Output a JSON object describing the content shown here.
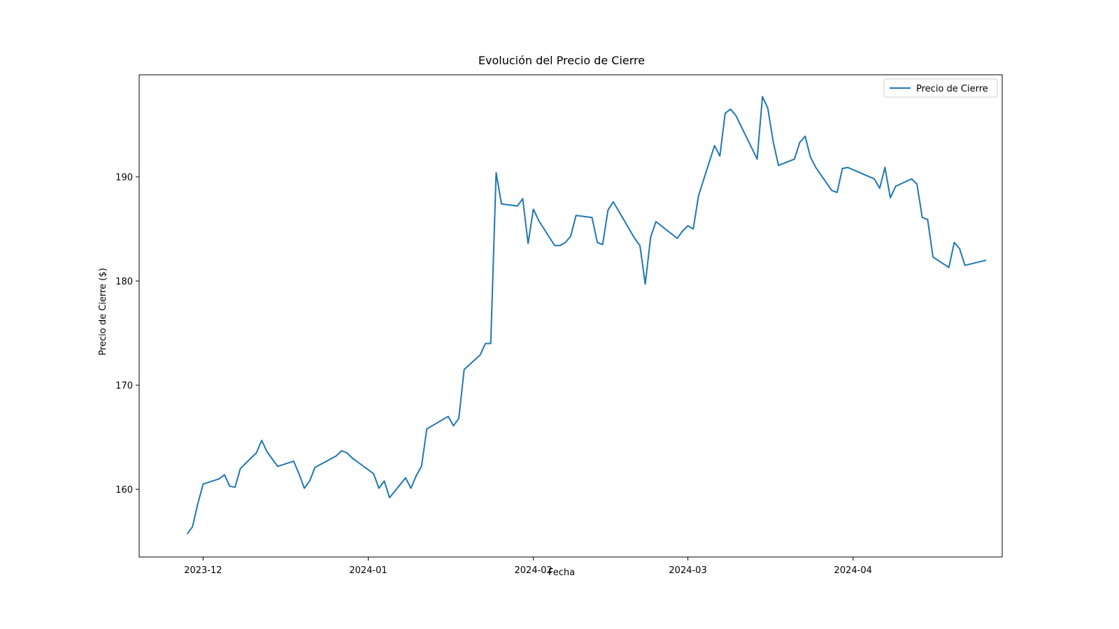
{
  "chart_data": {
    "type": "line",
    "title": "Evolución del Precio de Cierre",
    "xlabel": "Fecha",
    "ylabel": "Precio de Cierre ($)",
    "x_tick_labels": [
      {
        "date": "2023-12-01",
        "label": "2023-12"
      },
      {
        "date": "2024-01-01",
        "label": "2024-01"
      },
      {
        "date": "2024-02-01",
        "label": "2024-02"
      },
      {
        "date": "2024-03-01",
        "label": "2024-03"
      },
      {
        "date": "2024-04-01",
        "label": "2024-04"
      }
    ],
    "y_ticks": [
      160,
      170,
      180,
      190
    ],
    "xlim": [
      "2023-11-19",
      "2024-04-29"
    ],
    "ylim": [
      153.5,
      199.8
    ],
    "grid": false,
    "legend_position": "top-right",
    "series": [
      {
        "name": "Precio de Cierre",
        "color": "#1f77b4",
        "points": [
          [
            "2023-11-28",
            155.7
          ],
          [
            "2023-11-29",
            156.4
          ],
          [
            "2023-11-30",
            158.6
          ],
          [
            "2023-12-01",
            160.5
          ],
          [
            "2023-12-04",
            161.0
          ],
          [
            "2023-12-05",
            161.4
          ],
          [
            "2023-12-06",
            160.3
          ],
          [
            "2023-12-07",
            160.2
          ],
          [
            "2023-12-08",
            162.0
          ],
          [
            "2023-12-11",
            163.5
          ],
          [
            "2023-12-12",
            164.7
          ],
          [
            "2023-12-13",
            163.6
          ],
          [
            "2023-12-14",
            162.9
          ],
          [
            "2023-12-15",
            162.2
          ],
          [
            "2023-12-18",
            162.7
          ],
          [
            "2023-12-19",
            161.5
          ],
          [
            "2023-12-20",
            160.1
          ],
          [
            "2023-12-21",
            160.8
          ],
          [
            "2023-12-22",
            162.1
          ],
          [
            "2023-12-26",
            163.2
          ],
          [
            "2023-12-27",
            163.7
          ],
          [
            "2023-12-28",
            163.5
          ],
          [
            "2023-12-29",
            163.0
          ],
          [
            "2024-01-02",
            161.5
          ],
          [
            "2024-01-03",
            160.1
          ],
          [
            "2024-01-04",
            160.8
          ],
          [
            "2024-01-05",
            159.2
          ],
          [
            "2024-01-08",
            161.1
          ],
          [
            "2024-01-09",
            160.1
          ],
          [
            "2024-01-10",
            161.3
          ],
          [
            "2024-01-11",
            162.2
          ],
          [
            "2024-01-12",
            165.8
          ],
          [
            "2024-01-16",
            167.0
          ],
          [
            "2024-01-17",
            166.1
          ],
          [
            "2024-01-18",
            166.8
          ],
          [
            "2024-01-19",
            171.5
          ],
          [
            "2024-01-22",
            172.9
          ],
          [
            "2024-01-23",
            174.0
          ],
          [
            "2024-01-24",
            174.0
          ],
          [
            "2024-01-25",
            190.4
          ],
          [
            "2024-01-26",
            187.4
          ],
          [
            "2024-01-29",
            187.2
          ],
          [
            "2024-01-30",
            187.9
          ],
          [
            "2024-01-31",
            183.6
          ],
          [
            "2024-02-01",
            186.9
          ],
          [
            "2024-02-02",
            185.8
          ],
          [
            "2024-02-05",
            183.4
          ],
          [
            "2024-02-06",
            183.4
          ],
          [
            "2024-02-07",
            183.7
          ],
          [
            "2024-02-08",
            184.3
          ],
          [
            "2024-02-09",
            186.3
          ],
          [
            "2024-02-12",
            186.1
          ],
          [
            "2024-02-13",
            183.7
          ],
          [
            "2024-02-14",
            183.5
          ],
          [
            "2024-02-15",
            186.8
          ],
          [
            "2024-02-16",
            187.6
          ],
          [
            "2024-02-20",
            184.1
          ],
          [
            "2024-02-21",
            183.4
          ],
          [
            "2024-02-22",
            179.7
          ],
          [
            "2024-02-23",
            184.2
          ],
          [
            "2024-02-24",
            185.7
          ],
          [
            "2024-02-28",
            184.1
          ],
          [
            "2024-02-29",
            184.8
          ],
          [
            "2024-03-01",
            185.3
          ],
          [
            "2024-03-02",
            185.0
          ],
          [
            "2024-03-03",
            188.2
          ],
          [
            "2024-03-06",
            193.0
          ],
          [
            "2024-03-07",
            192.0
          ],
          [
            "2024-03-08",
            196.1
          ],
          [
            "2024-03-09",
            196.5
          ],
          [
            "2024-03-10",
            195.9
          ],
          [
            "2024-03-12",
            193.8
          ],
          [
            "2024-03-14",
            191.7
          ],
          [
            "2024-03-15",
            197.7
          ],
          [
            "2024-03-16",
            196.6
          ],
          [
            "2024-03-17",
            193.4
          ],
          [
            "2024-03-18",
            191.1
          ],
          [
            "2024-03-21",
            191.7
          ],
          [
            "2024-03-22",
            193.3
          ],
          [
            "2024-03-23",
            193.9
          ],
          [
            "2024-03-24",
            191.9
          ],
          [
            "2024-03-25",
            190.9
          ],
          [
            "2024-03-28",
            188.7
          ],
          [
            "2024-03-29",
            188.5
          ],
          [
            "2024-03-30",
            190.8
          ],
          [
            "2024-03-31",
            190.9
          ],
          [
            "2024-04-05",
            189.8
          ],
          [
            "2024-04-06",
            188.9
          ],
          [
            "2024-04-07",
            190.9
          ],
          [
            "2024-04-08",
            188.0
          ],
          [
            "2024-04-09",
            189.1
          ],
          [
            "2024-04-12",
            189.8
          ],
          [
            "2024-04-13",
            189.3
          ],
          [
            "2024-04-14",
            186.1
          ],
          [
            "2024-04-15",
            185.9
          ],
          [
            "2024-04-16",
            182.3
          ],
          [
            "2024-04-19",
            181.3
          ],
          [
            "2024-04-20",
            183.7
          ],
          [
            "2024-04-21",
            183.1
          ],
          [
            "2024-04-22",
            181.5
          ],
          [
            "2024-04-26",
            182.0
          ]
        ]
      }
    ]
  }
}
